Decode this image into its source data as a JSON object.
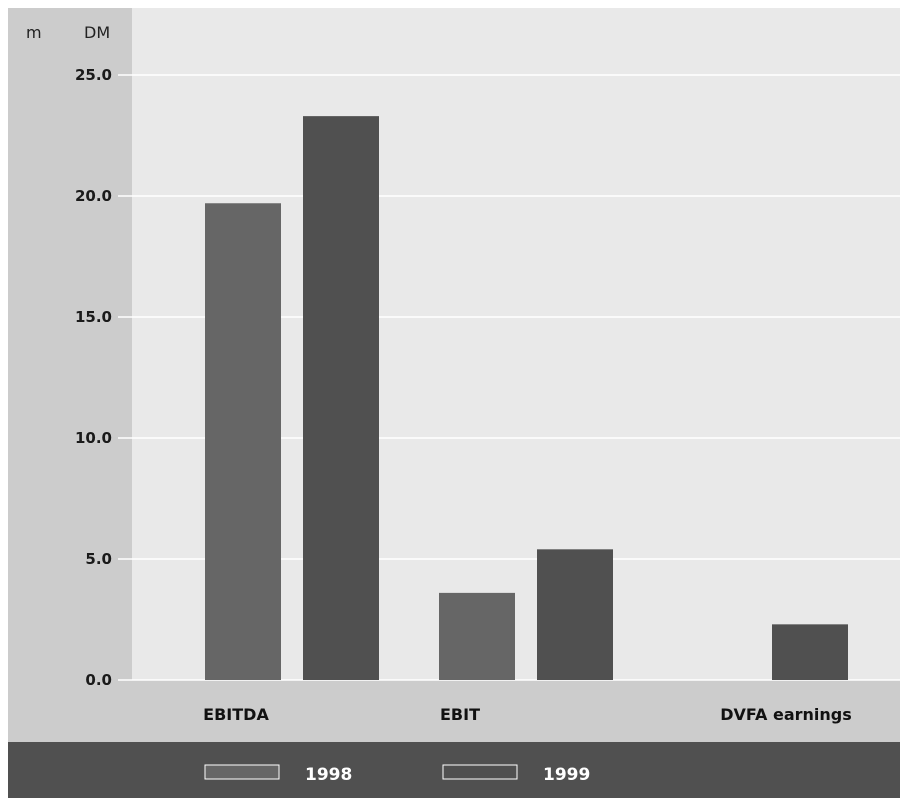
{
  "chart_data": {
    "type": "bar",
    "unit_labels": [
      "m",
      "DM"
    ],
    "categories": [
      "EBITDA",
      "EBIT",
      "DVFA earnings"
    ],
    "series": [
      {
        "name": "1998",
        "values": [
          19.7,
          3.6,
          null
        ],
        "color": "#666666"
      },
      {
        "name": "1999",
        "values": [
          23.3,
          5.4,
          2.3
        ],
        "color": "#505050"
      }
    ],
    "yticks": [
      "0.0",
      "5.0",
      "10.0",
      "15.0",
      "20.0",
      "25.0"
    ],
    "ylim": [
      0,
      25
    ],
    "grid": true,
    "legend_position": "bottom",
    "colors": {
      "plot_background": "#e9e9e9",
      "axis_panel": "#cccccc",
      "legend_bar": "#505050",
      "gridline": "#ffffff"
    }
  }
}
